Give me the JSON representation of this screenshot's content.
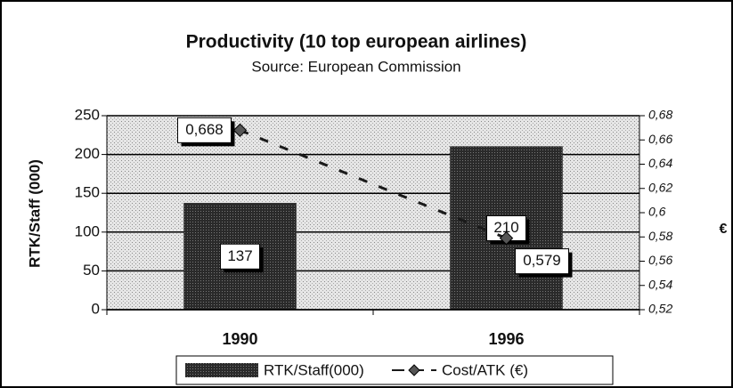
{
  "chart_data": {
    "type": "bar",
    "title": "Productivity (10 top european airlines)",
    "subtitle": "Source: European Commission",
    "ylabel": "RTK/Staff (000)",
    "y2label": "€",
    "categories": [
      "1990",
      "1996"
    ],
    "series": [
      {
        "name": "RTK/Staff(000)",
        "type": "bar",
        "color": "#2e2e2e",
        "values": [
          137,
          210
        ]
      },
      {
        "name": "Cost/ATK (€)",
        "type": "line",
        "axis": "y2",
        "color": "#1a1a1a",
        "values": [
          0.668,
          0.579
        ],
        "value_labels": [
          "0,668",
          "0,579"
        ]
      }
    ],
    "ylim": [
      0,
      250
    ],
    "yticks": [
      0,
      50,
      100,
      150,
      200,
      250
    ],
    "y2lim": [
      0.52,
      0.68
    ],
    "y2ticks": [
      {
        "value": 0.52,
        "label": "0,52"
      },
      {
        "value": 0.54,
        "label": "0,54"
      },
      {
        "value": 0.56,
        "label": "0,56"
      },
      {
        "value": 0.58,
        "label": "0,58"
      },
      {
        "value": 0.6,
        "label": "0,6"
      },
      {
        "value": 0.62,
        "label": "0,62"
      },
      {
        "value": 0.64,
        "label": "0,64"
      },
      {
        "value": 0.66,
        "label": "0,66"
      },
      {
        "value": 0.68,
        "label": "0,68"
      }
    ],
    "grid": true
  }
}
